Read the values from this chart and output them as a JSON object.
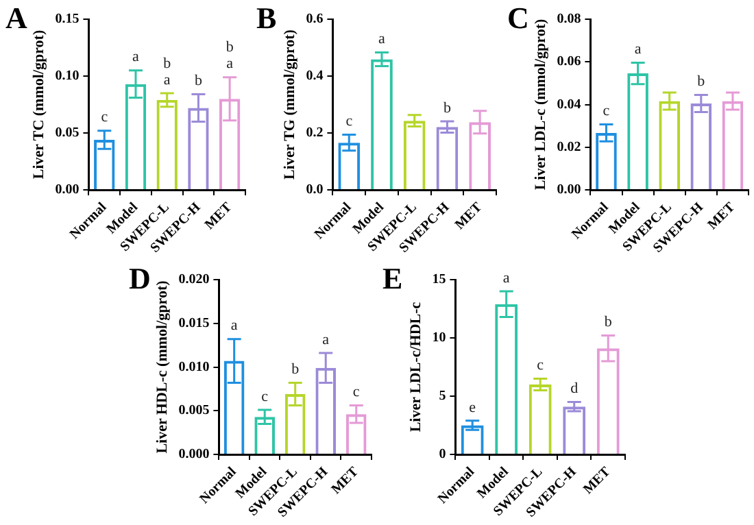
{
  "chart_data": [
    {
      "type": "bar",
      "title": "A",
      "ylabel": "Liver TC (mmol/gprot)",
      "categories": [
        "Normal",
        "Model",
        "SWEPC-L",
        "SWEPC-H",
        "MET"
      ],
      "colors": [
        "#1f8fe0",
        "#2ec4a6",
        "#b5d62a",
        "#9b8ad8",
        "#e59ad6"
      ],
      "values": [
        0.044,
        0.093,
        0.079,
        0.072,
        0.08
      ],
      "errors": [
        0.008,
        0.012,
        0.006,
        0.012,
        0.019
      ],
      "value_labels": [
        "c",
        "a",
        "b\na",
        "b",
        "b\na"
      ],
      "ylim": [
        0,
        0.15
      ],
      "yticks": [
        {
          "value": 0,
          "label": "0.00"
        },
        {
          "value": 0.05,
          "label": "0.05"
        },
        {
          "value": 0.1,
          "label": "0.10"
        },
        {
          "value": 0.15,
          "label": "0.15"
        }
      ],
      "grid": false
    },
    {
      "type": "bar",
      "title": "B",
      "ylabel": "Liver TG (mmol/gprot)",
      "categories": [
        "Normal",
        "Model",
        "SWEPC-L",
        "SWEPC-H",
        "MET"
      ],
      "colors": [
        "#1f8fe0",
        "#2ec4a6",
        "#b5d62a",
        "#9b8ad8",
        "#e59ad6"
      ],
      "values": [
        0.166,
        0.459,
        0.243,
        0.221,
        0.238
      ],
      "errors": [
        0.028,
        0.024,
        0.02,
        0.02,
        0.04
      ],
      "value_labels": [
        "c",
        "a",
        null,
        "b",
        null
      ],
      "ylim": [
        0,
        0.6
      ],
      "yticks": [
        {
          "value": 0,
          "label": "0.0"
        },
        0.2,
        0.4,
        0.6
      ],
      "grid": false
    },
    {
      "type": "bar",
      "title": "C",
      "ylabel": "Liver LDL-c (mmol/gprot)",
      "categories": [
        "Normal",
        "Model",
        "SWEPC-L",
        "SWEPC-H",
        "MET"
      ],
      "colors": [
        "#1f8fe0",
        "#2ec4a6",
        "#b5d62a",
        "#9b8ad8",
        "#e59ad6"
      ],
      "values": [
        0.0267,
        0.0546,
        0.0416,
        0.0405,
        0.0416
      ],
      "errors": [
        0.004,
        0.005,
        0.004,
        0.004,
        0.004
      ],
      "value_labels": [
        "c",
        "a",
        null,
        "b",
        null
      ],
      "ylim": [
        0,
        0.08
      ],
      "yticks": [
        {
          "value": 0,
          "label": "0.00"
        },
        {
          "value": 0.02,
          "label": "0.02"
        },
        {
          "value": 0.04,
          "label": "0.04"
        },
        {
          "value": 0.06,
          "label": "0.06"
        },
        {
          "value": 0.08,
          "label": "0.08"
        }
      ],
      "grid": false
    },
    {
      "type": "bar",
      "title": "D",
      "ylabel": "Liver HDL-c (mmol/gprot)",
      "categories": [
        "Normal",
        "Model",
        "SWEPC-L",
        "SWEPC-H",
        "MET"
      ],
      "colors": [
        "#1f8fe0",
        "#2ec4a6",
        "#b5d62a",
        "#9b8ad8",
        "#e59ad6"
      ],
      "values": [
        0.0107,
        0.0043,
        0.0069,
        0.0099,
        0.0046
      ],
      "errors": [
        0.0025,
        0.0008,
        0.0013,
        0.0017,
        0.001
      ],
      "value_labels": [
        "a",
        "c",
        "b",
        "a",
        "c"
      ],
      "ylim": [
        0,
        0.02
      ],
      "yticks": [
        {
          "value": 0,
          "label": "0.000"
        },
        {
          "value": 0.005,
          "label": "0.005"
        },
        {
          "value": 0.01,
          "label": "0.010"
        },
        {
          "value": 0.015,
          "label": "0.015"
        },
        {
          "value": 0.02,
          "label": "0.020"
        }
      ],
      "grid": false
    },
    {
      "type": "bar",
      "title": "E",
      "ylabel": "Liver LDL-c/HDL-c",
      "categories": [
        "Normal",
        "Model",
        "SWEPC-L",
        "SWEPC-H",
        "MET"
      ],
      "colors": [
        "#1f8fe0",
        "#2ec4a6",
        "#b5d62a",
        "#9b8ad8",
        "#e59ad6"
      ],
      "values": [
        2.5,
        12.9,
        6.0,
        4.1,
        9.1
      ],
      "errors": [
        0.4,
        1.1,
        0.5,
        0.4,
        1.1
      ],
      "value_labels": [
        "e",
        "a",
        "c",
        "d",
        "b"
      ],
      "ylim": [
        0,
        15
      ],
      "yticks": [
        0,
        5,
        10,
        15
      ],
      "grid": false
    }
  ]
}
